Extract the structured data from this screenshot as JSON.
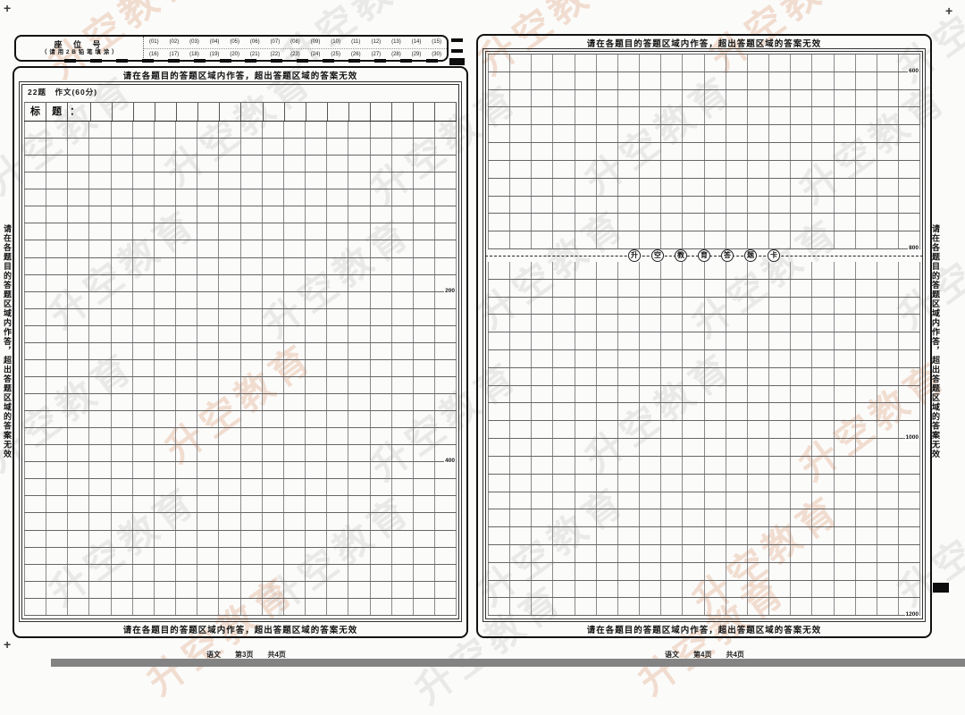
{
  "warning": "请在各题目的答题区域内作答，超出答题区域的答案无效",
  "registration_mark": "+",
  "watermark": {
    "text": "升空教育",
    "salmon": "#dd9a72",
    "gray": "#b8b8b8"
  },
  "seat_box": {
    "title": "座 位 号",
    "subtitle": "（ 请 用 2 B 铅 笔 填 涂 ）",
    "row1": [
      "(01)",
      "(02)",
      "(03)",
      "(04)",
      "(05)",
      "(06)",
      "(07)",
      "(08)",
      "(09)",
      "(10)",
      "(11)",
      "(12)",
      "(13)",
      "(14)",
      "(15)"
    ],
    "row2": [
      "(16)",
      "(17)",
      "(18)",
      "(19)",
      "(20)",
      "(21)",
      "(22)",
      "(23)",
      "(24)",
      "(25)",
      "(26)",
      "(27)",
      "(28)",
      "(29)",
      "(30)"
    ]
  },
  "left_page": {
    "question_label": "22题　作文(60分)",
    "title_row": [
      "标",
      "题",
      "："
    ],
    "grid": {
      "cols": 20,
      "rows": 29,
      "has_title_row": true,
      "markers": [
        {
          "row": 10,
          "label": "200"
        },
        {
          "row": 20,
          "label": "400"
        }
      ]
    },
    "footer": {
      "subject": "语文",
      "page": "第3页",
      "total": "共4页"
    }
  },
  "right_page": {
    "grid": {
      "cols": 20,
      "rows": 31,
      "divider_after_row": 11,
      "markers": [
        {
          "row": 1,
          "label": "600"
        },
        {
          "row": 11,
          "label": "800"
        },
        {
          "row": 21,
          "label": "1000"
        },
        {
          "row": 31,
          "label": "1200"
        }
      ]
    },
    "divider_chars": [
      "升",
      "空",
      "教",
      "育",
      "答",
      "题",
      "卡"
    ],
    "footer": {
      "subject": "语文",
      "page": "第4页",
      "total": "共4页"
    }
  }
}
